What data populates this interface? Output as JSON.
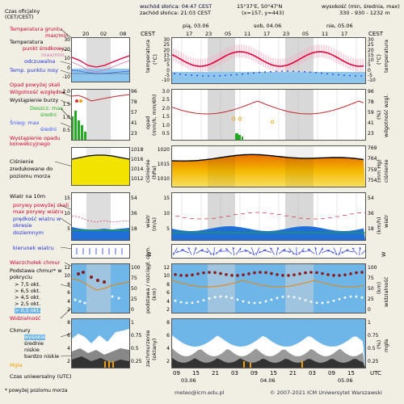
{
  "header": {
    "timezone_label": "Czas oficjalny (CET/CEST)",
    "sunrise": "wschód słońca: 04:47 CEST",
    "sunset": "zachód słońca: 21:03 CEST",
    "coords": "15°37'E, 50°47'N",
    "grid": "(x=157, y=443)",
    "elevation_label": "wysokość (min, średnia, max)",
    "elevation": "330 - 930 - 1232 m",
    "tz_left": "CEST",
    "tz_right": "CEST",
    "mini_hours": [
      "20",
      "02",
      "08"
    ],
    "days": [
      "pią, 03.06",
      "sob, 04.06",
      "nie, 05.06"
    ],
    "hours": [
      "17",
      "23",
      "05",
      "11",
      "17",
      "23",
      "05",
      "11",
      "17"
    ]
  },
  "legend": {
    "temp_grunt": "Temperatura gruntu",
    "maxmin": "max/min",
    "temperatura": "Temperatura",
    "punkt_srodkowy": "punkt środkowy",
    "maxmin2": "max/min",
    "odczuwalna": "odczuwalna",
    "punkt_rosy": "Temp. punktu rosy",
    "opad_snieg": "Opad powyżej skali",
    "wilgotnosc": "Wilgotność względna",
    "burza": "Wystąpienie burzy",
    "deszcz": "Deszcz: max",
    "srednia": "średni",
    "snieg": "Śnieg:  max",
    "srednia2": "średni",
    "opad_konw": "Wystąpienie opadu konwekcyjnego",
    "cisnienie": "Ciśnienie zredukowane do poziomu morza",
    "wiatr": "Wiatr na 10m",
    "porywy_skala": "porywy powyżej skali",
    "max_porywy": "max porywy wiatru",
    "predkosc": "prędkość wiatru w okresie doziemnym",
    "kierunek": "kierunek wiatru",
    "wierzcholek": "Wierzchołek chmur",
    "podstawa": "Podstawa chmur* w pokryciu",
    "p75": "> 7,5 okt.",
    "p65": "> 6,5 okt.",
    "p45": "> 4,5 okt.",
    "p25": "> 2,5 okt.",
    "p05": "> 0,5 okt.",
    "widzialnosc": "Widzialność",
    "chmury": "Chmury",
    "wysokie": "wysokie",
    "srednie": "średnie",
    "niskie": "niskie",
    "bardzo_niskie": "bardzo niskie",
    "mgla": "Mgła",
    "utc_label": "Czas uniwersalny (UTC)",
    "footnote": "* powyżej poziomu morza"
  },
  "right_labels": {
    "temperatura": "temperatura",
    "temp_unit": "(°C)",
    "opad": "opad",
    "opad_unit": "(mm/h, mm/6h)",
    "wilg": "wilgotność wzgl.",
    "wilg_unit": "(%)",
    "cisnienie": "ciśnienie",
    "cisn_unit": "(hPa)",
    "cisn_unit2": "(mm Hg)",
    "wiatr": "wiatr",
    "wiatr_unit": "(m/s)",
    "wiatr_unit2": "(km/h)",
    "chmury": "podstawa / rozciągł. chm.",
    "chm_unit": "(km)",
    "widzialnosc": "widzialność",
    "widz_unit": "(km)",
    "zachm": "zachmurzenie",
    "zachm_unit": "(oktany)",
    "mgla": "mgła",
    "mgla_unit": "(%)",
    "wc": "W"
  },
  "footer": {
    "email": "meteo@icm.edu.pl",
    "copyright": "© 2007-2021 ICM Uniwersytet Warszawski",
    "utc_hours": [
      "09",
      "15",
      "21",
      "03",
      "09",
      "15",
      "21",
      "03",
      "09",
      "15"
    ],
    "utc_days": [
      "03.06",
      "04.06",
      "05.06"
    ],
    "utc_label": "UTC"
  },
  "ticks": {
    "temp_left": [
      "30",
      "25",
      "20",
      "15",
      "10",
      "5",
      "0",
      "-5",
      "-10"
    ],
    "opad_left": [
      "3.0",
      "2.5",
      "2.0",
      "1.5",
      "1.0",
      "0.5"
    ],
    "opad_right": [
      "96",
      "78",
      "59",
      "41",
      "23"
    ],
    "cisn_left": [
      "1020",
      "1015",
      "1010"
    ],
    "cisn_right": [
      "769",
      "764",
      "759",
      "754"
    ],
    "wiatr_left": [
      "15",
      "10",
      "5"
    ],
    "wiatr_right": [
      "54",
      "36",
      "18"
    ],
    "chm_left": [
      "12",
      "10",
      "8",
      "6",
      "4",
      "2"
    ],
    "chm_right": [
      "100",
      "75",
      "50",
      "25",
      "0"
    ],
    "zach_left": [
      "8",
      "6",
      "4",
      "2"
    ],
    "zach_right": [
      "1",
      "0.75",
      "0.5",
      "0.25"
    ],
    "mini_temp": [
      "30",
      "20",
      "10",
      "0",
      "-10"
    ],
    "mini_opad": [
      "2.0",
      "1.5",
      "1.0",
      "0.5"
    ],
    "mini_opad_r": [
      "96",
      "78",
      "57",
      "41",
      "23"
    ],
    "mini_cisn": [
      "1018",
      "1016",
      "1014",
      "1012"
    ],
    "mini_wiatr": [
      "15",
      "10",
      "5"
    ],
    "mini_wiatr_r": [
      "54",
      "36",
      "18"
    ],
    "mini_chm": [
      "12",
      "10",
      "8",
      "6",
      "4",
      "2"
    ],
    "mini_chm_r": [
      "100",
      "75",
      "50",
      "25",
      "0"
    ],
    "mini_zach": [
      "8",
      "6",
      "4",
      "2"
    ],
    "mini_zach_r": [
      "1",
      "0.75",
      "0.5",
      "0.25"
    ]
  },
  "colors": {
    "temperature": "#e0003c",
    "dew": "#2233dd",
    "rain": "#22aa22",
    "snow": "#3355ff",
    "pressure_fill": "#f5b800",
    "wind_fill": "#1f6fd6",
    "cloud_bg": "#6fb6e8",
    "night_band": "#c9c9c9"
  }
}
